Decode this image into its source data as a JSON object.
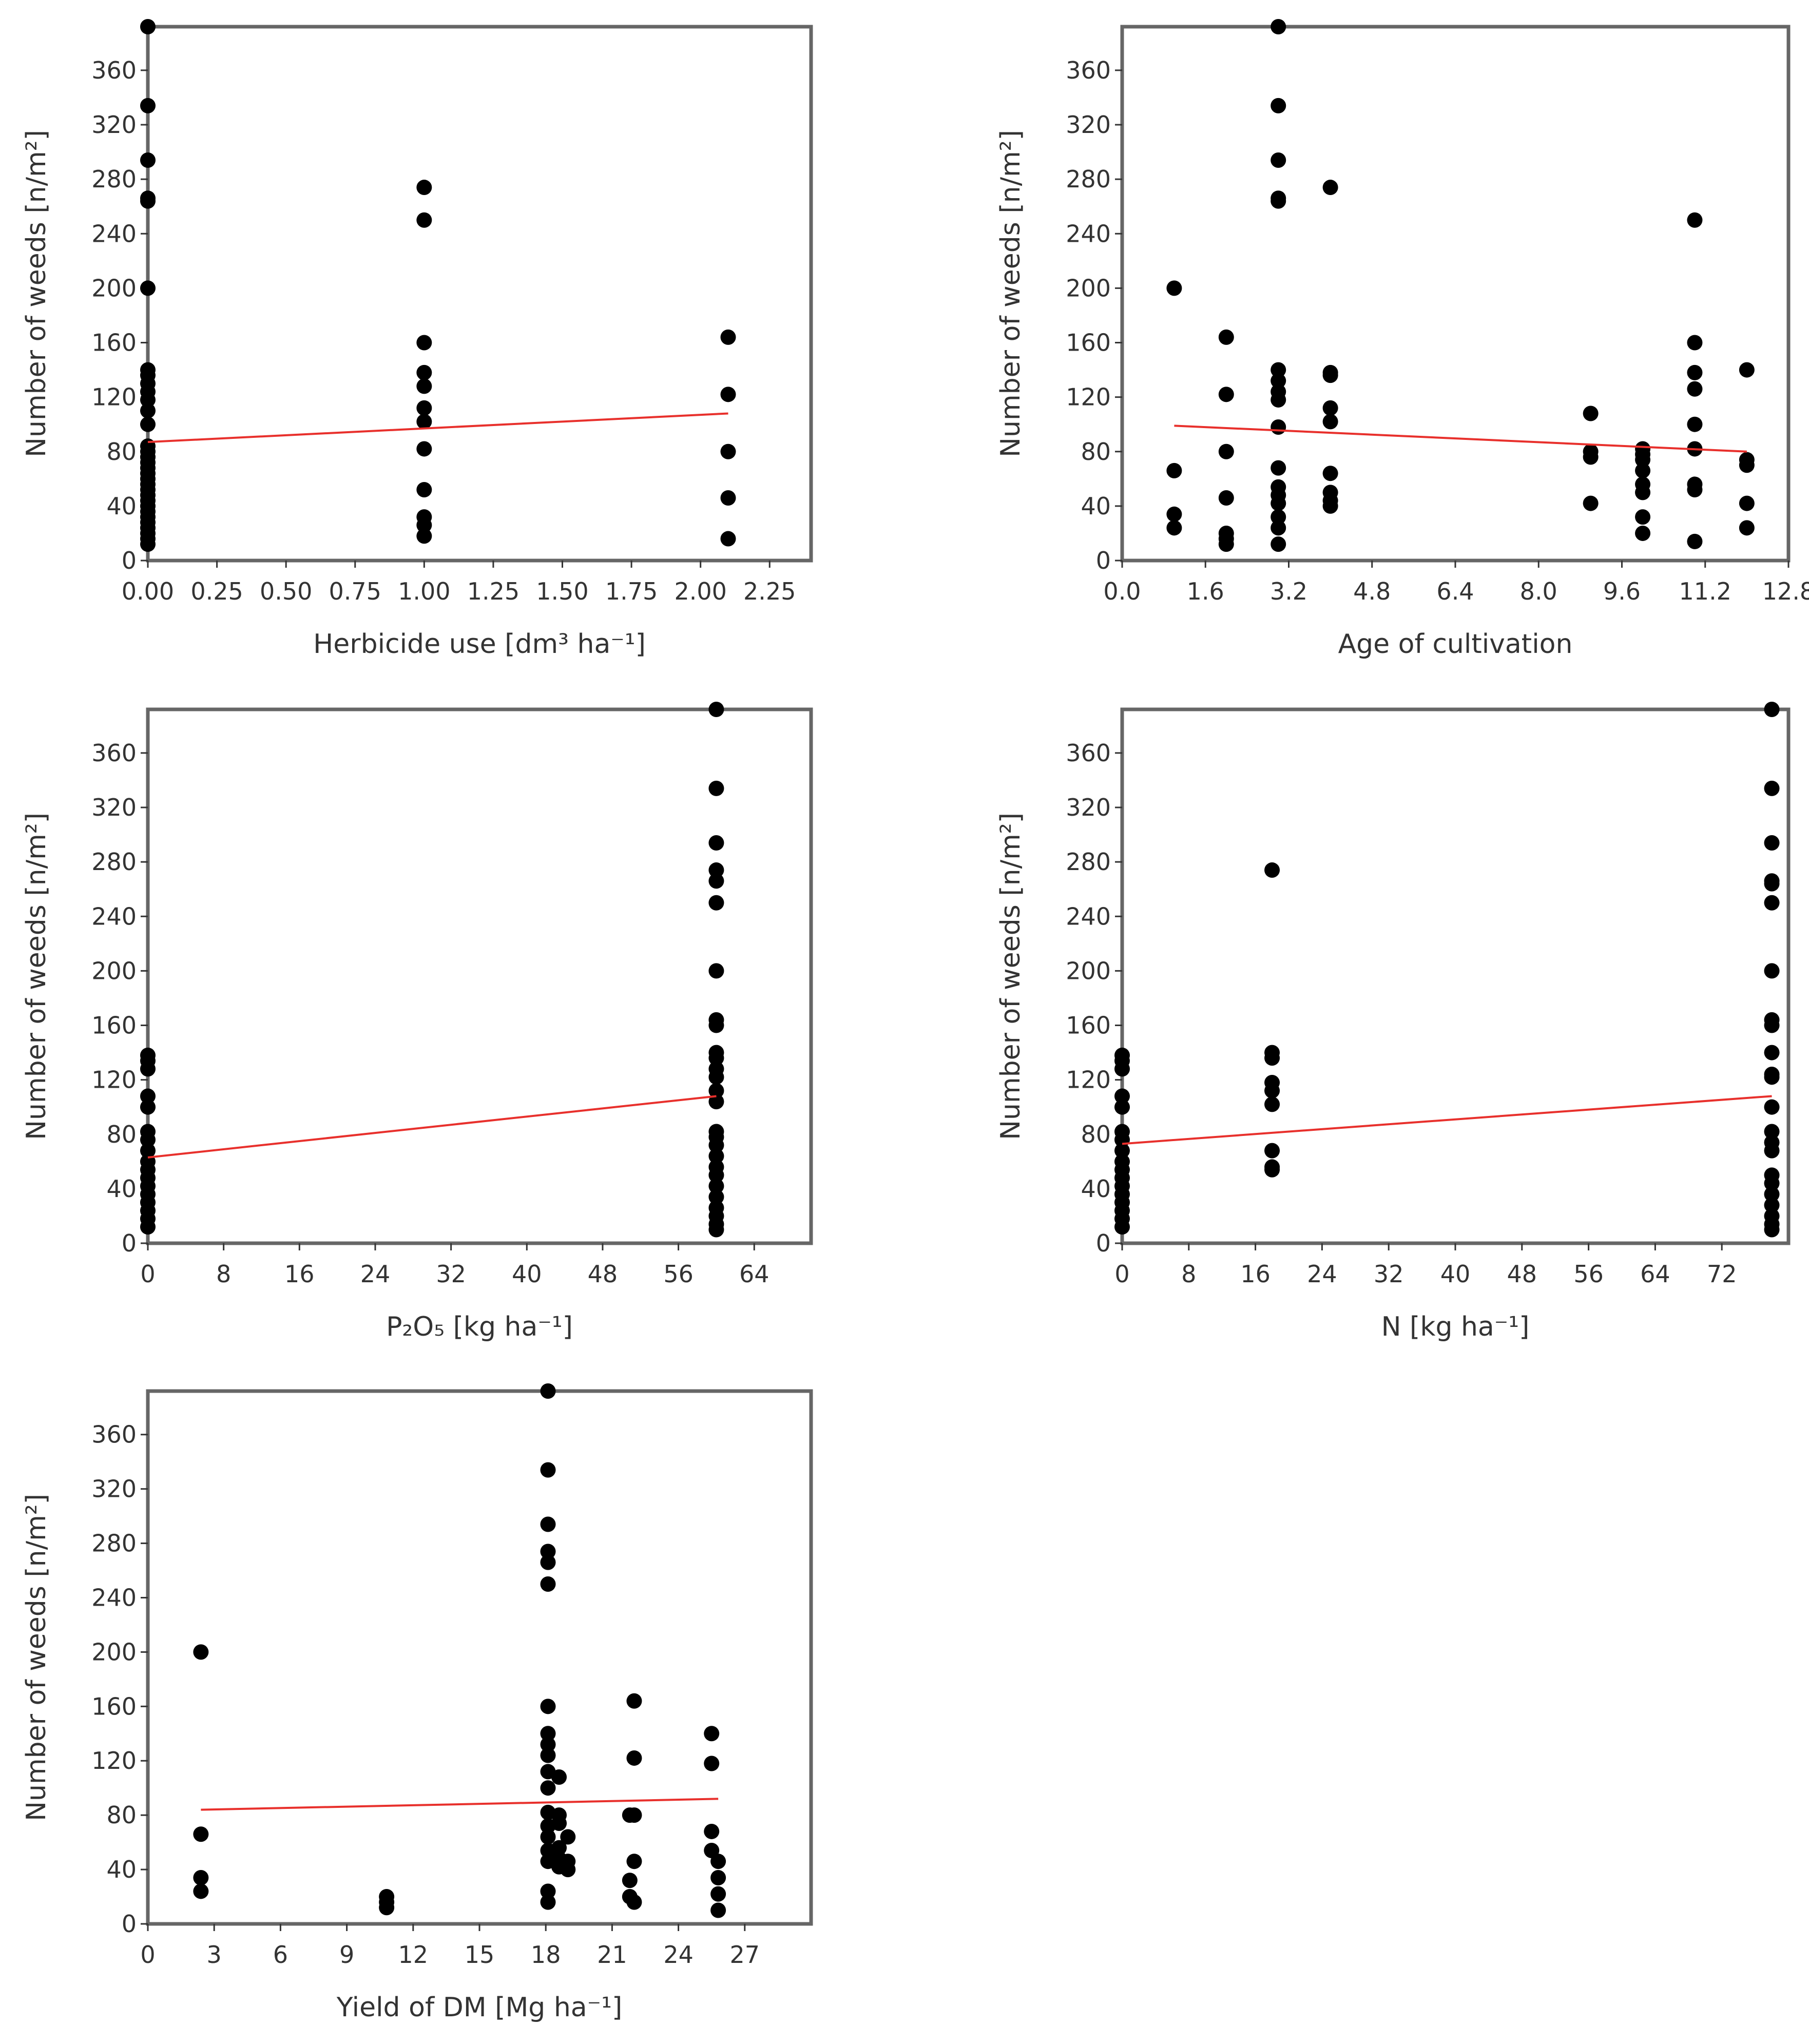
{
  "chart_data": [
    {
      "type": "scatter",
      "xlabel": "Herbicide use [dm³ ha⁻¹]",
      "ylabel": "Number of weeds [n/m²]",
      "xlim": [
        0,
        2.4
      ],
      "ylim": [
        0,
        392
      ],
      "x_ticks": [
        "0.00",
        "0.25",
        "0.50",
        "0.75",
        "1.00",
        "1.25",
        "1.50",
        "1.75",
        "2.00",
        "2.25"
      ],
      "y_ticks": [
        "0",
        "40",
        "80",
        "120",
        "160",
        "200",
        "240",
        "280",
        "320",
        "360"
      ],
      "points": [
        [
          0,
          392
        ],
        [
          0,
          334
        ],
        [
          0,
          294
        ],
        [
          0,
          266
        ],
        [
          0,
          264
        ],
        [
          0,
          200
        ],
        [
          0,
          140
        ],
        [
          0,
          136
        ],
        [
          0,
          130
        ],
        [
          0,
          124
        ],
        [
          0,
          118
        ],
        [
          0,
          110
        ],
        [
          0,
          100
        ],
        [
          0,
          84
        ],
        [
          0,
          80
        ],
        [
          0,
          76
        ],
        [
          0,
          72
        ],
        [
          0,
          68
        ],
        [
          0,
          64
        ],
        [
          0,
          60
        ],
        [
          0,
          56
        ],
        [
          0,
          52
        ],
        [
          0,
          48
        ],
        [
          0,
          44
        ],
        [
          0,
          40
        ],
        [
          0,
          36
        ],
        [
          0,
          32
        ],
        [
          0,
          28
        ],
        [
          0,
          24
        ],
        [
          0,
          20
        ],
        [
          0,
          16
        ],
        [
          0,
          12
        ],
        [
          1,
          274
        ],
        [
          1,
          250
        ],
        [
          1,
          160
        ],
        [
          1,
          138
        ],
        [
          1,
          128
        ],
        [
          1,
          112
        ],
        [
          1,
          102
        ],
        [
          1,
          82
        ],
        [
          1,
          52
        ],
        [
          1,
          32
        ],
        [
          1,
          26
        ],
        [
          1,
          18
        ],
        [
          2.1,
          164
        ],
        [
          2.1,
          122
        ],
        [
          2.1,
          80
        ],
        [
          2.1,
          46
        ],
        [
          2.1,
          16
        ]
      ],
      "trend": [
        [
          0,
          87
        ],
        [
          2.1,
          108
        ]
      ]
    },
    {
      "type": "scatter",
      "xlabel": "Age of cultivation",
      "ylabel": "Number of weeds [n/m²]",
      "xlim": [
        0,
        12.8
      ],
      "ylim": [
        0,
        392
      ],
      "x_ticks": [
        "0.0",
        "1.6",
        "3.2",
        "4.8",
        "6.4",
        "8.0",
        "9.6",
        "11.2",
        "12.8"
      ],
      "y_ticks": [
        "0",
        "40",
        "80",
        "120",
        "160",
        "200",
        "240",
        "280",
        "320",
        "360"
      ],
      "points": [
        [
          1,
          200
        ],
        [
          1,
          66
        ],
        [
          1,
          34
        ],
        [
          1,
          24
        ],
        [
          2,
          164
        ],
        [
          2,
          122
        ],
        [
          2,
          80
        ],
        [
          2,
          46
        ],
        [
          2,
          20
        ],
        [
          2,
          16
        ],
        [
          2,
          12
        ],
        [
          3,
          392
        ],
        [
          3,
          334
        ],
        [
          3,
          294
        ],
        [
          3,
          266
        ],
        [
          3,
          264
        ],
        [
          3,
          140
        ],
        [
          3,
          132
        ],
        [
          3,
          124
        ],
        [
          3,
          118
        ],
        [
          3,
          98
        ],
        [
          3,
          68
        ],
        [
          3,
          54
        ],
        [
          3,
          48
        ],
        [
          3,
          42
        ],
        [
          3,
          32
        ],
        [
          3,
          24
        ],
        [
          3,
          12
        ],
        [
          4,
          274
        ],
        [
          4,
          138
        ],
        [
          4,
          136
        ],
        [
          4,
          112
        ],
        [
          4,
          102
        ],
        [
          4,
          64
        ],
        [
          4,
          50
        ],
        [
          4,
          44
        ],
        [
          4,
          40
        ],
        [
          9,
          108
        ],
        [
          9,
          80
        ],
        [
          9,
          76
        ],
        [
          9,
          42
        ],
        [
          10,
          82
        ],
        [
          10,
          78
        ],
        [
          10,
          74
        ],
        [
          10,
          66
        ],
        [
          10,
          56
        ],
        [
          10,
          50
        ],
        [
          10,
          32
        ],
        [
          10,
          20
        ],
        [
          11,
          250
        ],
        [
          11,
          160
        ],
        [
          11,
          138
        ],
        [
          11,
          126
        ],
        [
          11,
          100
        ],
        [
          11,
          82
        ],
        [
          11,
          56
        ],
        [
          11,
          52
        ],
        [
          11,
          14
        ],
        [
          12,
          140
        ],
        [
          12,
          74
        ],
        [
          12,
          70
        ],
        [
          12,
          42
        ],
        [
          12,
          24
        ]
      ],
      "trend": [
        [
          1,
          99
        ],
        [
          12,
          80
        ]
      ]
    },
    {
      "type": "scatter",
      "xlabel": "P₂O₅ [kg ha⁻¹]",
      "ylabel": "Number of weeds [n/m²]",
      "xlim": [
        0,
        70
      ],
      "ylim": [
        0,
        392
      ],
      "x_ticks": [
        "0",
        "8",
        "16",
        "24",
        "32",
        "40",
        "48",
        "56",
        "64"
      ],
      "y_ticks": [
        "0",
        "40",
        "80",
        "120",
        "160",
        "200",
        "240",
        "280",
        "320",
        "360"
      ],
      "points": [
        [
          0,
          138
        ],
        [
          0,
          134
        ],
        [
          0,
          128
        ],
        [
          0,
          108
        ],
        [
          0,
          100
        ],
        [
          0,
          82
        ],
        [
          0,
          76
        ],
        [
          0,
          68
        ],
        [
          0,
          60
        ],
        [
          0,
          54
        ],
        [
          0,
          48
        ],
        [
          0,
          42
        ],
        [
          0,
          36
        ],
        [
          0,
          30
        ],
        [
          0,
          24
        ],
        [
          0,
          18
        ],
        [
          0,
          12
        ],
        [
          60,
          392
        ],
        [
          60,
          334
        ],
        [
          60,
          294
        ],
        [
          60,
          274
        ],
        [
          60,
          266
        ],
        [
          60,
          250
        ],
        [
          60,
          200
        ],
        [
          60,
          164
        ],
        [
          60,
          160
        ],
        [
          60,
          140
        ],
        [
          60,
          136
        ],
        [
          60,
          128
        ],
        [
          60,
          122
        ],
        [
          60,
          112
        ],
        [
          60,
          104
        ],
        [
          60,
          82
        ],
        [
          60,
          78
        ],
        [
          60,
          72
        ],
        [
          60,
          64
        ],
        [
          60,
          56
        ],
        [
          60,
          50
        ],
        [
          60,
          42
        ],
        [
          60,
          34
        ],
        [
          60,
          26
        ],
        [
          60,
          20
        ],
        [
          60,
          14
        ],
        [
          60,
          10
        ]
      ],
      "trend": [
        [
          0,
          63
        ],
        [
          60,
          108
        ]
      ]
    },
    {
      "type": "scatter",
      "xlabel": "N [kg ha⁻¹]",
      "ylabel": "Number of weeds [n/m²]",
      "xlim": [
        0,
        80
      ],
      "ylim": [
        0,
        392
      ],
      "x_ticks": [
        "0",
        "8",
        "16",
        "24",
        "32",
        "40",
        "48",
        "56",
        "64",
        "72"
      ],
      "y_ticks": [
        "0",
        "40",
        "80",
        "120",
        "160",
        "200",
        "240",
        "280",
        "320",
        "360"
      ],
      "points": [
        [
          0,
          138
        ],
        [
          0,
          134
        ],
        [
          0,
          128
        ],
        [
          0,
          108
        ],
        [
          0,
          100
        ],
        [
          0,
          82
        ],
        [
          0,
          76
        ],
        [
          0,
          68
        ],
        [
          0,
          60
        ],
        [
          0,
          54
        ],
        [
          0,
          48
        ],
        [
          0,
          42
        ],
        [
          0,
          36
        ],
        [
          0,
          30
        ],
        [
          0,
          24
        ],
        [
          0,
          18
        ],
        [
          0,
          12
        ],
        [
          18,
          274
        ],
        [
          18,
          140
        ],
        [
          18,
          136
        ],
        [
          18,
          118
        ],
        [
          18,
          112
        ],
        [
          18,
          102
        ],
        [
          18,
          68
        ],
        [
          18,
          56
        ],
        [
          18,
          54
        ],
        [
          78,
          392
        ],
        [
          78,
          334
        ],
        [
          78,
          294
        ],
        [
          78,
          266
        ],
        [
          78,
          264
        ],
        [
          78,
          250
        ],
        [
          78,
          200
        ],
        [
          78,
          164
        ],
        [
          78,
          160
        ],
        [
          78,
          140
        ],
        [
          78,
          124
        ],
        [
          78,
          122
        ],
        [
          78,
          100
        ],
        [
          78,
          82
        ],
        [
          78,
          74
        ],
        [
          78,
          68
        ],
        [
          78,
          50
        ],
        [
          78,
          44
        ],
        [
          78,
          36
        ],
        [
          78,
          28
        ],
        [
          78,
          20
        ],
        [
          78,
          14
        ],
        [
          78,
          10
        ]
      ],
      "trend": [
        [
          0,
          73
        ],
        [
          78,
          108
        ]
      ]
    },
    {
      "type": "scatter",
      "xlabel": "Yield of DM [Mg ha⁻¹]",
      "ylabel": "Number of weeds [n/m²]",
      "xlim": [
        0,
        30
      ],
      "ylim": [
        0,
        392
      ],
      "x_ticks": [
        "0",
        "3",
        "6",
        "9",
        "12",
        "15",
        "18",
        "21",
        "24",
        "27"
      ],
      "y_ticks": [
        "0",
        "40",
        "80",
        "120",
        "160",
        "200",
        "240",
        "280",
        "320",
        "360"
      ],
      "points": [
        [
          2.4,
          200
        ],
        [
          2.4,
          66
        ],
        [
          2.4,
          34
        ],
        [
          2.4,
          24
        ],
        [
          10.8,
          20
        ],
        [
          10.8,
          16
        ],
        [
          10.8,
          12
        ],
        [
          18.1,
          392
        ],
        [
          18.1,
          334
        ],
        [
          18.1,
          294
        ],
        [
          18.1,
          274
        ],
        [
          18.1,
          266
        ],
        [
          18.1,
          250
        ],
        [
          18.1,
          160
        ],
        [
          18.1,
          140
        ],
        [
          18.1,
          132
        ],
        [
          18.1,
          124
        ],
        [
          18.1,
          112
        ],
        [
          18.1,
          100
        ],
        [
          18.1,
          82
        ],
        [
          18.1,
          72
        ],
        [
          18.1,
          64
        ],
        [
          18.1,
          54
        ],
        [
          18.1,
          46
        ],
        [
          18.1,
          24
        ],
        [
          18.1,
          16
        ],
        [
          18.6,
          108
        ],
        [
          18.6,
          80
        ],
        [
          18.6,
          74
        ],
        [
          18.6,
          56
        ],
        [
          18.6,
          48
        ],
        [
          18.6,
          42
        ],
        [
          19,
          64
        ],
        [
          19,
          46
        ],
        [
          19,
          40
        ],
        [
          21.8,
          80
        ],
        [
          21.8,
          32
        ],
        [
          21.8,
          20
        ],
        [
          22,
          164
        ],
        [
          22,
          122
        ],
        [
          22,
          80
        ],
        [
          22,
          46
        ],
        [
          22,
          16
        ],
        [
          25.5,
          140
        ],
        [
          25.5,
          118
        ],
        [
          25.5,
          68
        ],
        [
          25.5,
          54
        ],
        [
          25.8,
          46
        ],
        [
          25.8,
          34
        ],
        [
          25.8,
          22
        ],
        [
          25.8,
          10
        ]
      ],
      "trend": [
        [
          2.4,
          84
        ],
        [
          25.8,
          92
        ]
      ]
    }
  ]
}
